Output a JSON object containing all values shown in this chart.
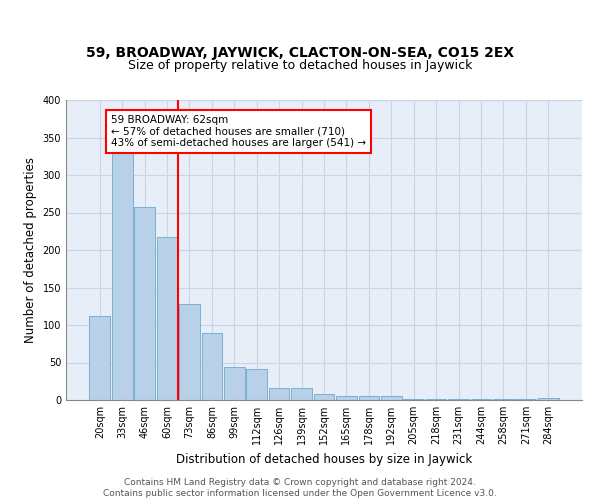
{
  "title1": "59, BROADWAY, JAYWICK, CLACTON-ON-SEA, CO15 2EX",
  "title2": "Size of property relative to detached houses in Jaywick",
  "xlabel": "Distribution of detached houses by size in Jaywick",
  "ylabel": "Number of detached properties",
  "categories": [
    "20sqm",
    "33sqm",
    "46sqm",
    "60sqm",
    "73sqm",
    "86sqm",
    "99sqm",
    "112sqm",
    "126sqm",
    "139sqm",
    "152sqm",
    "165sqm",
    "178sqm",
    "192sqm",
    "205sqm",
    "218sqm",
    "231sqm",
    "244sqm",
    "258sqm",
    "271sqm",
    "284sqm"
  ],
  "values": [
    112,
    330,
    257,
    217,
    128,
    90,
    44,
    42,
    16,
    16,
    8,
    6,
    5,
    6,
    2,
    1,
    1,
    1,
    1,
    1,
    3
  ],
  "bar_color": "#b8d0e8",
  "bar_edge_color": "#7aafd4",
  "property_line_x": 3.5,
  "annotation_text": "59 BROADWAY: 62sqm\n← 57% of detached houses are smaller (710)\n43% of semi-detached houses are larger (541) →",
  "annotation_box_color": "white",
  "annotation_box_edge_color": "red",
  "vline_color": "red",
  "ylim": [
    0,
    400
  ],
  "yticks": [
    0,
    50,
    100,
    150,
    200,
    250,
    300,
    350,
    400
  ],
  "grid_color": "#c8d4e8",
  "background_color": "#e8eef8",
  "footer_text": "Contains HM Land Registry data © Crown copyright and database right 2024.\nContains public sector information licensed under the Open Government Licence v3.0.",
  "title1_fontsize": 10,
  "title2_fontsize": 9,
  "xlabel_fontsize": 8.5,
  "ylabel_fontsize": 8.5,
  "tick_fontsize": 7,
  "footer_fontsize": 6.5,
  "annot_fontsize": 7.5
}
